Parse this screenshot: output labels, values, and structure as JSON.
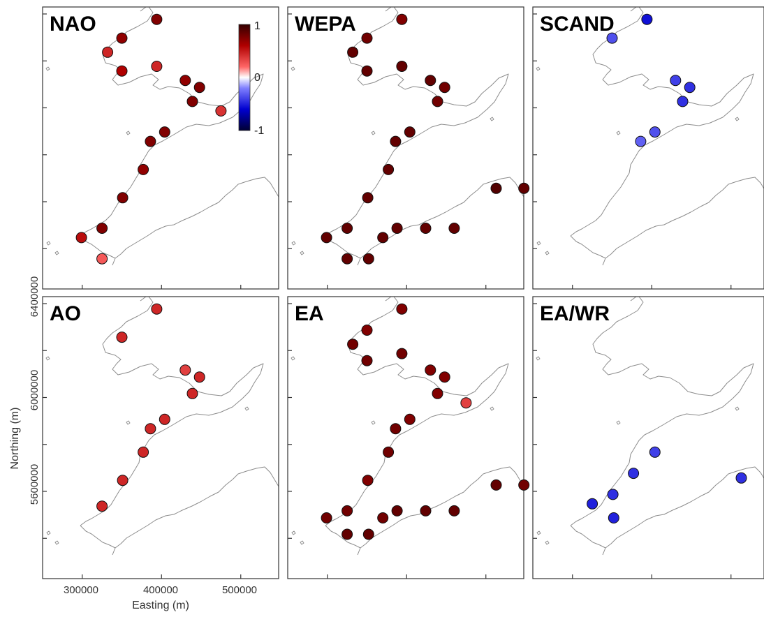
{
  "x_axis": {
    "label": "Easting (m)",
    "ticks": [
      300000,
      400000,
      500000
    ],
    "tick_labels": [
      "300000",
      "400000",
      "500000"
    ],
    "range": [
      250000,
      550000
    ]
  },
  "y_axis": {
    "label": "Northing (m)",
    "ticks": [
      5600000,
      6000000,
      6400000
    ],
    "tick_labels": [
      "5600000",
      "6000000",
      "6400000"
    ],
    "range": [
      5200000,
      6400000
    ]
  },
  "colorbar": {
    "min": -1,
    "max": 1,
    "tick_labels": [
      "1",
      "0",
      "-1"
    ],
    "colors": {
      "neg": "#000033",
      "mid": "#ffffff",
      "pos": "#330000"
    }
  },
  "chart_data": {
    "type": "map",
    "panels": [
      {
        "label": "NAO",
        "stations": [
          {
            "x": 394000,
            "y": 6377000,
            "value": 0.75
          },
          {
            "x": 350000,
            "y": 6297000,
            "value": 0.7
          },
          {
            "x": 332000,
            "y": 6237000,
            "value": 0.45
          },
          {
            "x": 394000,
            "y": 6177000,
            "value": 0.45
          },
          {
            "x": 350000,
            "y": 6157000,
            "value": 0.6
          },
          {
            "x": 430000,
            "y": 6117000,
            "value": 0.7
          },
          {
            "x": 448000,
            "y": 6087000,
            "value": 0.75
          },
          {
            "x": 439000,
            "y": 6027000,
            "value": 0.75
          },
          {
            "x": 475000,
            "y": 5987000,
            "value": 0.4
          },
          {
            "x": 404000,
            "y": 5897000,
            "value": 0.75
          },
          {
            "x": 386000,
            "y": 5857000,
            "value": 0.75
          },
          {
            "x": 377000,
            "y": 5737000,
            "value": 0.7
          },
          {
            "x": 351000,
            "y": 5617000,
            "value": 0.75
          },
          {
            "x": 325000,
            "y": 5487000,
            "value": 0.75
          },
          {
            "x": 299000,
            "y": 5447000,
            "value": 0.55
          },
          {
            "x": 325000,
            "y": 5357000,
            "value": 0.25
          }
        ]
      },
      {
        "label": "WEPA",
        "stations": [
          {
            "x": 394000,
            "y": 6377000,
            "value": 0.75
          },
          {
            "x": 350000,
            "y": 6297000,
            "value": 0.8
          },
          {
            "x": 332000,
            "y": 6237000,
            "value": 0.85
          },
          {
            "x": 394000,
            "y": 6177000,
            "value": 0.85
          },
          {
            "x": 350000,
            "y": 6157000,
            "value": 0.85
          },
          {
            "x": 430000,
            "y": 6117000,
            "value": 0.85
          },
          {
            "x": 448000,
            "y": 6087000,
            "value": 0.8
          },
          {
            "x": 439000,
            "y": 6027000,
            "value": 0.8
          },
          {
            "x": 404000,
            "y": 5897000,
            "value": 0.85
          },
          {
            "x": 386000,
            "y": 5857000,
            "value": 0.85
          },
          {
            "x": 377000,
            "y": 5737000,
            "value": 0.85
          },
          {
            "x": 351000,
            "y": 5617000,
            "value": 0.85
          },
          {
            "x": 513000,
            "y": 5657000,
            "value": 0.9
          },
          {
            "x": 548000,
            "y": 5657000,
            "value": 0.85
          },
          {
            "x": 325000,
            "y": 5487000,
            "value": 0.85
          },
          {
            "x": 299000,
            "y": 5447000,
            "value": 0.85
          },
          {
            "x": 370000,
            "y": 5447000,
            "value": 0.85
          },
          {
            "x": 388000,
            "y": 5487000,
            "value": 0.85
          },
          {
            "x": 424000,
            "y": 5487000,
            "value": 0.85
          },
          {
            "x": 460000,
            "y": 5487000,
            "value": 0.85
          },
          {
            "x": 325000,
            "y": 5357000,
            "value": 0.85
          },
          {
            "x": 352000,
            "y": 5357000,
            "value": 0.85
          }
        ]
      },
      {
        "label": "SCAND",
        "stations": [
          {
            "x": 394000,
            "y": 6377000,
            "value": -0.55
          },
          {
            "x": 350000,
            "y": 6297000,
            "value": -0.35
          },
          {
            "x": 430000,
            "y": 6117000,
            "value": -0.4
          },
          {
            "x": 448000,
            "y": 6087000,
            "value": -0.45
          },
          {
            "x": 439000,
            "y": 6027000,
            "value": -0.45
          },
          {
            "x": 404000,
            "y": 5897000,
            "value": -0.35
          },
          {
            "x": 386000,
            "y": 5857000,
            "value": -0.3
          }
        ]
      },
      {
        "label": "AO",
        "stations": [
          {
            "x": 394000,
            "y": 6377000,
            "value": 0.45
          },
          {
            "x": 350000,
            "y": 6257000,
            "value": 0.45
          },
          {
            "x": 430000,
            "y": 6117000,
            "value": 0.35
          },
          {
            "x": 448000,
            "y": 6087000,
            "value": 0.45
          },
          {
            "x": 439000,
            "y": 6017000,
            "value": 0.45
          },
          {
            "x": 404000,
            "y": 5907000,
            "value": 0.45
          },
          {
            "x": 386000,
            "y": 5867000,
            "value": 0.45
          },
          {
            "x": 377000,
            "y": 5767000,
            "value": 0.45
          },
          {
            "x": 351000,
            "y": 5647000,
            "value": 0.45
          },
          {
            "x": 325000,
            "y": 5537000,
            "value": 0.45
          }
        ]
      },
      {
        "label": "EA",
        "stations": [
          {
            "x": 394000,
            "y": 6377000,
            "value": 0.75
          },
          {
            "x": 350000,
            "y": 6287000,
            "value": 0.75
          },
          {
            "x": 332000,
            "y": 6227000,
            "value": 0.8
          },
          {
            "x": 394000,
            "y": 6187000,
            "value": 0.8
          },
          {
            "x": 350000,
            "y": 6157000,
            "value": 0.8
          },
          {
            "x": 430000,
            "y": 6117000,
            "value": 0.75
          },
          {
            "x": 448000,
            "y": 6087000,
            "value": 0.75
          },
          {
            "x": 439000,
            "y": 6017000,
            "value": 0.75
          },
          {
            "x": 475000,
            "y": 5977000,
            "value": 0.35
          },
          {
            "x": 404000,
            "y": 5907000,
            "value": 0.75
          },
          {
            "x": 386000,
            "y": 5867000,
            "value": 0.8
          },
          {
            "x": 377000,
            "y": 5767000,
            "value": 0.8
          },
          {
            "x": 351000,
            "y": 5647000,
            "value": 0.75
          },
          {
            "x": 513000,
            "y": 5627000,
            "value": 0.85
          },
          {
            "x": 548000,
            "y": 5627000,
            "value": 0.8
          },
          {
            "x": 325000,
            "y": 5517000,
            "value": 0.8
          },
          {
            "x": 299000,
            "y": 5487000,
            "value": 0.8
          },
          {
            "x": 370000,
            "y": 5487000,
            "value": 0.8
          },
          {
            "x": 388000,
            "y": 5517000,
            "value": 0.85
          },
          {
            "x": 424000,
            "y": 5517000,
            "value": 0.85
          },
          {
            "x": 460000,
            "y": 5517000,
            "value": 0.85
          },
          {
            "x": 325000,
            "y": 5417000,
            "value": 0.85
          },
          {
            "x": 352000,
            "y": 5417000,
            "value": 0.85
          }
        ]
      },
      {
        "label": "EA/WR",
        "stations": [
          {
            "x": 404000,
            "y": 5767000,
            "value": -0.4
          },
          {
            "x": 377000,
            "y": 5677000,
            "value": -0.45
          },
          {
            "x": 351000,
            "y": 5587000,
            "value": -0.45
          },
          {
            "x": 325000,
            "y": 5547000,
            "value": -0.5
          },
          {
            "x": 513000,
            "y": 5657000,
            "value": -0.45
          },
          {
            "x": 352000,
            "y": 5487000,
            "value": -0.5
          }
        ]
      }
    ]
  }
}
